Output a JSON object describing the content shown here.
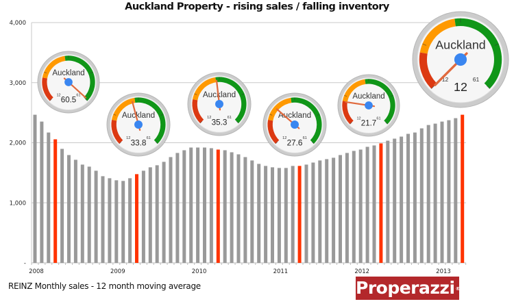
{
  "chart_data": {
    "type": "bar",
    "title": "Auckland Property - rising sales / falling inventory",
    "xlabel": "",
    "ylabel": "",
    "ylim": [
      0,
      4000
    ],
    "yticks": [
      {
        "value": 0,
        "label": "-"
      },
      {
        "value": 1000,
        "label": "1,000"
      },
      {
        "value": 2000,
        "label": "2,000"
      },
      {
        "value": 3000,
        "label": "3,000"
      },
      {
        "value": 4000,
        "label": "4,000"
      }
    ],
    "xtick_labels": [
      {
        "index": 0,
        "label": "2008"
      },
      {
        "index": 12,
        "label": "2009"
      },
      {
        "index": 24,
        "label": "2010"
      },
      {
        "index": 36,
        "label": "2011"
      },
      {
        "index": 48,
        "label": "2012"
      },
      {
        "index": 60,
        "label": "2013"
      }
    ],
    "grid": true,
    "series": [
      {
        "name": "REINZ Monthly sales - 12 month moving average",
        "start": "2008-01",
        "frequency": "monthly",
        "values": [
          2466,
          2352,
          2170,
          2057,
          1898,
          1795,
          1716,
          1636,
          1602,
          1534,
          1443,
          1409,
          1375,
          1364,
          1409,
          1477,
          1534,
          1591,
          1625,
          1682,
          1761,
          1830,
          1875,
          1920,
          1920,
          1920,
          1909,
          1886,
          1875,
          1841,
          1807,
          1761,
          1705,
          1648,
          1614,
          1591,
          1580,
          1580,
          1614,
          1614,
          1636,
          1670,
          1705,
          1727,
          1750,
          1795,
          1830,
          1864,
          1886,
          1932,
          1955,
          1989,
          2034,
          2068,
          2102,
          2148,
          2170,
          2239,
          2295,
          2318,
          2352,
          2375,
          2409,
          2466
        ]
      }
    ],
    "highlight_indices": [
      3,
      15,
      27,
      39,
      51,
      63
    ],
    "colors": {
      "bar": "#999999",
      "highlight": "#ff3300",
      "grid": "#c8c8c8"
    },
    "gauges": {
      "label": "Auckland",
      "min": 12,
      "max": 61,
      "min_label": "12",
      "max_label": "61",
      "zones": [
        {
          "from": 12,
          "to": 22,
          "color": "#dc3912"
        },
        {
          "from": 22,
          "to": 35,
          "color": "#ff9900"
        },
        {
          "from": 35,
          "to": 61,
          "color": "#109618"
        }
      ],
      "needle_color": "#e06a3e",
      "hub_color": "#3a86f0",
      "items": [
        {
          "bar_index": 3,
          "value": 60.5,
          "value_label": "60.5",
          "size": "small"
        },
        {
          "bar_index": 15,
          "value": 33.8,
          "value_label": "33.8",
          "size": "small"
        },
        {
          "bar_index": 27,
          "value": 35.3,
          "value_label": "35.3",
          "size": "small"
        },
        {
          "bar_index": 39,
          "value": 27.6,
          "value_label": "27.6",
          "size": "small"
        },
        {
          "bar_index": 51,
          "value": 21.7,
          "value_label": "21.7",
          "size": "small"
        },
        {
          "bar_index": 63,
          "value": 12,
          "value_label": "12",
          "size": "large"
        }
      ]
    }
  },
  "footer": {
    "source_note": "REINZ Monthly sales - 12 month moving average",
    "logo_text": "Properazzi",
    "logo_mark": "®"
  }
}
